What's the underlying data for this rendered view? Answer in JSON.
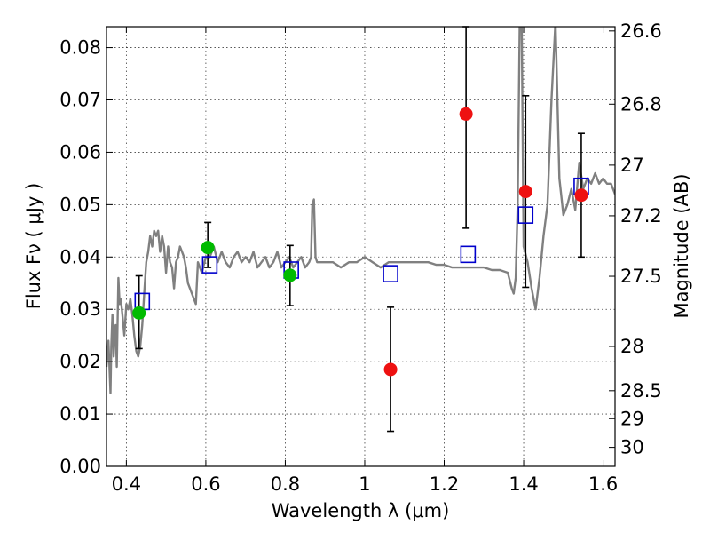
{
  "chart_data": {
    "type": "scatter",
    "xlabel": "Wavelength  λ (μm)",
    "ylabel": "Flux  Fν  ( μJy )",
    "y2label": "Magnitude (AB)",
    "xlim": [
      0.35,
      1.63
    ],
    "ylim": [
      0.0,
      0.084
    ],
    "x_ticks": [
      0.4,
      0.6,
      0.8,
      1.0,
      1.2,
      1.4,
      1.6
    ],
    "x_tick_labels": [
      "0.4",
      "0.6",
      "0.8",
      "1",
      "1.2",
      "1.4",
      "1.6"
    ],
    "y_ticks": [
      0.0,
      0.01,
      0.02,
      0.03,
      0.04,
      0.05,
      0.06,
      0.07,
      0.08
    ],
    "y_tick_labels": [
      "0.00",
      "0.01",
      "0.02",
      "0.03",
      "0.04",
      "0.05",
      "0.06",
      "0.07",
      "0.08"
    ],
    "y2_ticks": [
      26.6,
      26.8,
      27.0,
      27.2,
      27.5,
      28.0,
      28.5,
      29.0,
      30.0
    ],
    "y2_tick_labels": [
      "26.6",
      "26.8",
      "27",
      "27.2",
      "27.5",
      "28",
      "28.5",
      "29",
      "30"
    ],
    "grid": true,
    "colors": {
      "model_line": "#808080",
      "detections": "#00bb00",
      "upper_points": "#ee1111",
      "model_boxes": "#0000cc",
      "errorbar": "#000000"
    },
    "model_spectrum": {
      "x": [
        0.35,
        0.355,
        0.36,
        0.362,
        0.365,
        0.368,
        0.37,
        0.373,
        0.376,
        0.38,
        0.383,
        0.386,
        0.39,
        0.395,
        0.4,
        0.405,
        0.41,
        0.415,
        0.42,
        0.425,
        0.43,
        0.435,
        0.44,
        0.445,
        0.45,
        0.455,
        0.46,
        0.465,
        0.47,
        0.475,
        0.48,
        0.485,
        0.49,
        0.495,
        0.5,
        0.505,
        0.51,
        0.515,
        0.52,
        0.525,
        0.53,
        0.535,
        0.54,
        0.545,
        0.55,
        0.555,
        0.56,
        0.565,
        0.57,
        0.575,
        0.58,
        0.585,
        0.59,
        0.6,
        0.61,
        0.62,
        0.63,
        0.64,
        0.65,
        0.66,
        0.67,
        0.68,
        0.69,
        0.7,
        0.71,
        0.72,
        0.73,
        0.74,
        0.75,
        0.76,
        0.77,
        0.78,
        0.79,
        0.8,
        0.81,
        0.82,
        0.83,
        0.84,
        0.85,
        0.86,
        0.865,
        0.868,
        0.872,
        0.876,
        0.88,
        0.9,
        0.92,
        0.94,
        0.96,
        0.98,
        1.0,
        1.02,
        1.04,
        1.06,
        1.08,
        1.1,
        1.12,
        1.14,
        1.16,
        1.18,
        1.2,
        1.22,
        1.24,
        1.26,
        1.28,
        1.3,
        1.32,
        1.34,
        1.36,
        1.37,
        1.375,
        1.38,
        1.385,
        1.39,
        1.395,
        1.4,
        1.41,
        1.42,
        1.43,
        1.44,
        1.45,
        1.46,
        1.47,
        1.48,
        1.49,
        1.5,
        1.51,
        1.52,
        1.53,
        1.54,
        1.55,
        1.56,
        1.57,
        1.58,
        1.59,
        1.6,
        1.61,
        1.62,
        1.63
      ],
      "y": [
        0.019,
        0.024,
        0.014,
        0.023,
        0.029,
        0.021,
        0.025,
        0.027,
        0.019,
        0.036,
        0.031,
        0.032,
        0.029,
        0.025,
        0.031,
        0.03,
        0.032,
        0.029,
        0.025,
        0.022,
        0.021,
        0.023,
        0.027,
        0.033,
        0.039,
        0.041,
        0.044,
        0.042,
        0.045,
        0.044,
        0.045,
        0.041,
        0.044,
        0.042,
        0.037,
        0.042,
        0.039,
        0.038,
        0.034,
        0.039,
        0.04,
        0.042,
        0.041,
        0.04,
        0.038,
        0.035,
        0.034,
        0.033,
        0.032,
        0.031,
        0.039,
        0.038,
        0.037,
        0.04,
        0.04,
        0.042,
        0.039,
        0.041,
        0.039,
        0.038,
        0.04,
        0.041,
        0.039,
        0.04,
        0.039,
        0.041,
        0.038,
        0.039,
        0.04,
        0.038,
        0.039,
        0.041,
        0.038,
        0.039,
        0.04,
        0.038,
        0.039,
        0.04,
        0.038,
        0.039,
        0.04,
        0.05,
        0.051,
        0.04,
        0.039,
        0.039,
        0.039,
        0.038,
        0.039,
        0.039,
        0.04,
        0.039,
        0.038,
        0.039,
        0.039,
        0.039,
        0.039,
        0.039,
        0.039,
        0.0385,
        0.0385,
        0.038,
        0.038,
        0.038,
        0.038,
        0.038,
        0.0375,
        0.0375,
        0.037,
        0.034,
        0.033,
        0.036,
        0.05,
        0.085,
        0.085,
        0.042,
        0.039,
        0.034,
        0.03,
        0.036,
        0.044,
        0.05,
        0.07,
        0.085,
        0.055,
        0.048,
        0.05,
        0.053,
        0.049,
        0.058,
        0.053,
        0.055,
        0.054,
        0.056,
        0.054,
        0.055,
        0.054,
        0.054,
        0.052
      ]
    },
    "series": [
      {
        "values": [
          {
            "x": 0.432,
            "y": 0.0293,
            "err_lo": 0.0068,
            "err_hi": 0.0071
          },
          {
            "x": 0.605,
            "y": 0.0418,
            "err_lo": 0.0038,
            "err_hi": 0.0048
          },
          {
            "x": 0.812,
            "y": 0.0365,
            "err_lo": 0.0058,
            "err_hi": 0.0057
          }
        ]
      },
      {
        "values": [
          {
            "x": 1.065,
            "y": 0.0185,
            "err_lo": 0.0118,
            "err_hi": 0.0119
          },
          {
            "x": 1.255,
            "y": 0.0673,
            "err_lo": 0.0218,
            "err_hi": 0.0167
          },
          {
            "x": 1.405,
            "y": 0.0525,
            "err_lo": 0.0183,
            "err_hi": 0.0183
          },
          {
            "x": 1.545,
            "y": 0.0518,
            "err_lo": 0.0118,
            "err_hi": 0.0118
          }
        ]
      },
      {
        "values": [
          {
            "x": 0.44,
            "y": 0.0315
          },
          {
            "x": 0.61,
            "y": 0.0385
          },
          {
            "x": 0.815,
            "y": 0.0375
          },
          {
            "x": 1.065,
            "y": 0.0368
          },
          {
            "x": 1.26,
            "y": 0.0405
          },
          {
            "x": 1.405,
            "y": 0.048
          },
          {
            "x": 1.545,
            "y": 0.0535
          }
        ]
      }
    ]
  }
}
